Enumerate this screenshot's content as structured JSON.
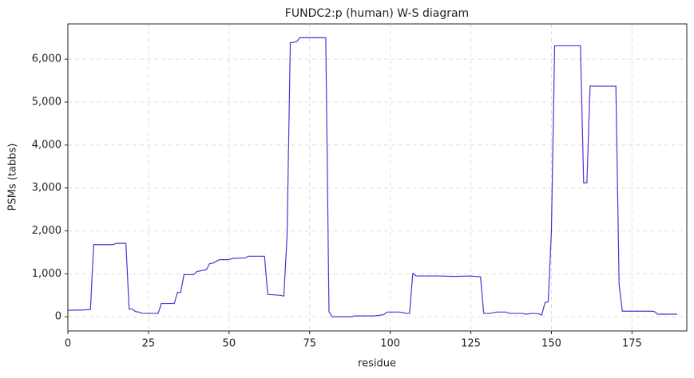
{
  "chart_data": {
    "type": "line",
    "title": "FUNDC2:p (human) W-S diagram",
    "x_label": "residue",
    "y_label": "PSMs (tabbs)",
    "x": [
      0,
      5,
      7,
      8,
      14,
      15,
      18,
      19,
      20,
      21,
      22,
      23,
      28,
      29,
      33,
      34,
      35,
      36,
      39,
      40,
      43,
      44,
      45,
      47,
      50,
      51,
      55,
      56,
      61,
      62,
      66,
      67,
      68,
      69,
      71,
      72,
      80,
      81,
      82,
      88,
      89,
      95,
      98,
      99,
      103,
      105,
      106,
      107,
      108,
      115,
      120,
      125,
      128,
      129,
      131,
      133,
      136,
      137,
      141,
      142,
      144,
      146,
      147,
      148,
      149,
      150,
      151,
      159,
      160,
      161,
      162,
      163,
      170,
      171,
      172,
      181,
      182,
      183,
      189
    ],
    "series": [
      {
        "name": "FUNDC2:p",
        "color": "#5b2bd1",
        "values": [
          150,
          160,
          170,
          1680,
          1680,
          1710,
          1710,
          180,
          180,
          120,
          110,
          80,
          80,
          310,
          310,
          570,
          570,
          980,
          980,
          1050,
          1100,
          1240,
          1250,
          1330,
          1330,
          1360,
          1370,
          1410,
          1410,
          520,
          500,
          480,
          1900,
          6380,
          6410,
          6500,
          6500,
          120,
          0,
          0,
          20,
          20,
          50,
          110,
          110,
          80,
          80,
          1010,
          950,
          950,
          940,
          950,
          930,
          80,
          80,
          110,
          110,
          80,
          80,
          60,
          80,
          70,
          40,
          330,
          350,
          2000,
          6310,
          6310,
          3120,
          3120,
          5380,
          5370,
          5370,
          750,
          130,
          130,
          120,
          60,
          60
        ]
      }
    ],
    "xlim": [
      0,
      192
    ],
    "ylim": [
      -330,
      6820
    ],
    "xticks": [
      0,
      25,
      50,
      75,
      100,
      125,
      150,
      175
    ],
    "yticks": [
      0,
      {
        "value": 1000,
        "label": "1,000"
      },
      {
        "value": 2000,
        "label": "2,000"
      },
      {
        "value": 3000,
        "label": "3,000"
      },
      {
        "value": 4000,
        "label": "4,000"
      },
      {
        "value": 5000,
        "label": "5,000"
      },
      {
        "value": 6000,
        "label": "6,000"
      }
    ],
    "grid": true
  }
}
